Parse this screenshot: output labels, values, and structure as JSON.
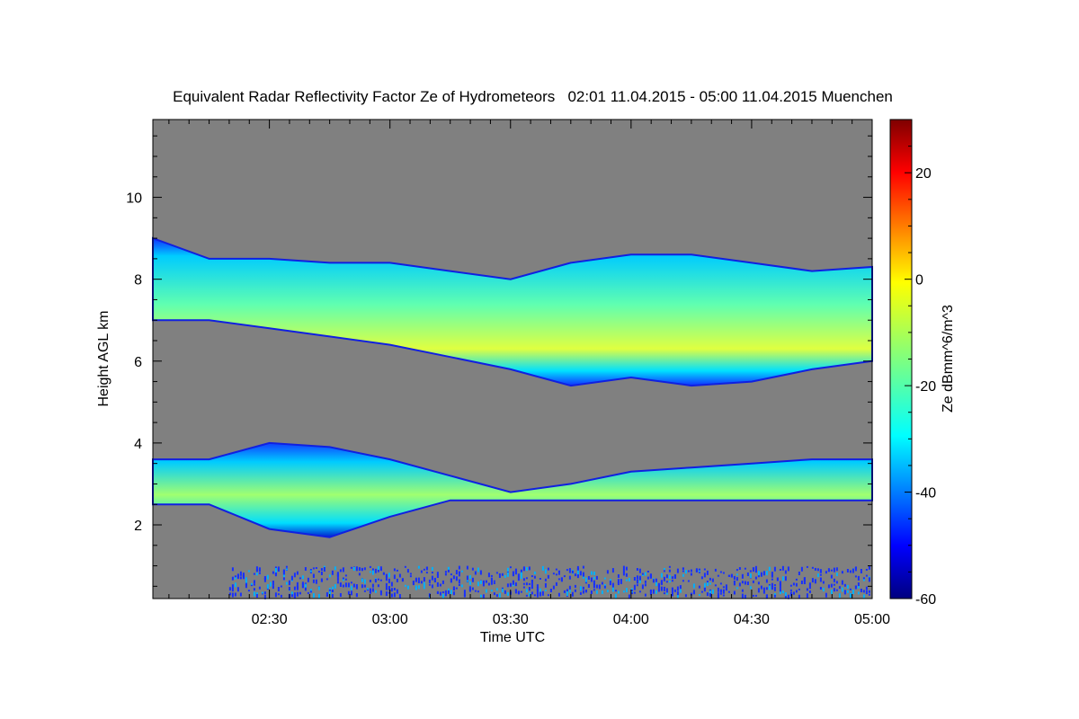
{
  "chart_data": {
    "type": "heatmap",
    "title": "Equivalent Radar Reflectivity Factor Ze of Hydrometeors   02:01 11.04.2015 - 05:00 11.04.2015 Muenchen",
    "xlabel": "Time UTC",
    "ylabel": "Height AGL km",
    "colorbar_label": "Ze dBmm^6/m^3",
    "x_range": [
      "02:01",
      "05:00"
    ],
    "x_ticks": [
      "02:30",
      "03:00",
      "03:30",
      "04:00",
      "04:30",
      "05:00"
    ],
    "ylim": [
      0.2,
      11.9
    ],
    "y_ticks": [
      "2",
      "4",
      "6",
      "8",
      "10"
    ],
    "color_range": [
      -60,
      30
    ],
    "colorbar_ticks": [
      "-60",
      "-40",
      "-20",
      "0",
      "20"
    ],
    "colormap": "jet",
    "background_color": "#808080",
    "layers": [
      {
        "description_key": "upper",
        "times": [
          "02:01",
          "02:15",
          "02:30",
          "02:45",
          "03:00",
          "03:15",
          "03:30",
          "03:45",
          "04:00",
          "04:15",
          "04:30",
          "04:45",
          "05:00"
        ],
        "top_km": [
          9.0,
          8.5,
          8.5,
          8.4,
          8.4,
          8.2,
          8.0,
          8.4,
          8.6,
          8.6,
          8.4,
          8.2,
          8.3
        ],
        "base_km": [
          7.0,
          7.0,
          6.8,
          6.6,
          6.4,
          6.1,
          5.8,
          5.4,
          5.6,
          5.4,
          5.5,
          5.8,
          6.0
        ],
        "max_ze_dbz": -5
      },
      {
        "description_key": "lower",
        "times": [
          "02:01",
          "02:15",
          "02:30",
          "02:45",
          "03:00",
          "03:15",
          "03:30",
          "03:45",
          "04:00",
          "04:15",
          "04:30",
          "04:45",
          "05:00"
        ],
        "top_km": [
          3.6,
          3.6,
          4.0,
          3.9,
          3.6,
          3.2,
          2.8,
          3.0,
          3.3,
          3.4,
          3.5,
          3.6,
          3.6
        ],
        "base_km": [
          2.5,
          2.5,
          1.9,
          1.7,
          2.2,
          2.6,
          2.6,
          2.6,
          2.6,
          2.6,
          2.6,
          2.6,
          2.6
        ],
        "max_ze_dbz": -10
      }
    ],
    "ground_clutter": {
      "top_km": 1.0,
      "start": "02:20",
      "end": "05:00"
    }
  }
}
